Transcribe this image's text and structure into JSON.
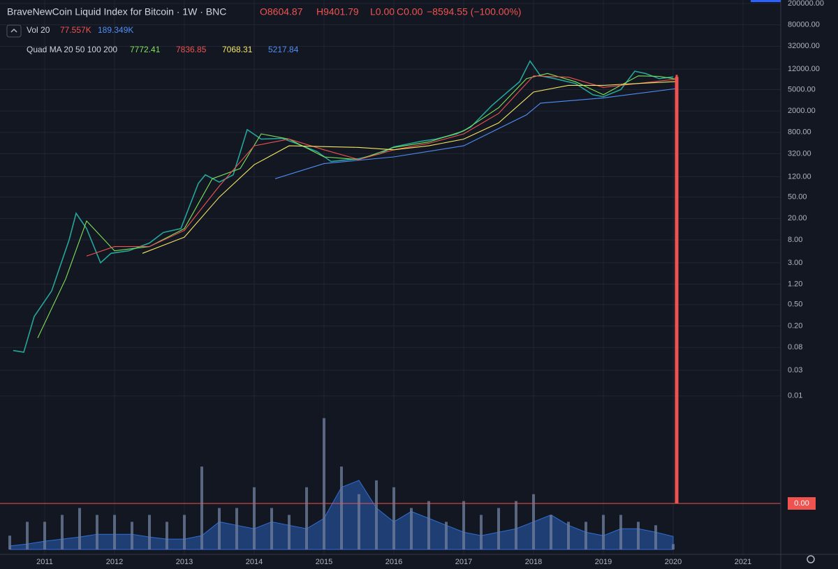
{
  "chart_data": {
    "type": "line",
    "title": "BraveNewCoin Liquid Index for Bitcoin · 1W · BNC",
    "ohlc_labels": [
      "O8604.87",
      "H9401.79",
      "L0.00",
      "C0.00",
      "−8594.55 (−100.00%)"
    ],
    "volume_legend": {
      "name": "Vol 20",
      "value": "77.557K",
      "ma": "189.349K"
    },
    "ma_legend": {
      "name": "Quad MA 20 50 100 200",
      "values": [
        "7772.41",
        "7836.85",
        "7068.31",
        "5217.84"
      ],
      "colors": [
        "#7ee35a",
        "#ef5350",
        "#f5e663",
        "#4f8ff7"
      ]
    },
    "log_scale": true,
    "grid": true,
    "xlim": [
      2010.48,
      2021.54
    ],
    "xticks": [
      2011,
      2012,
      2013,
      2014,
      2015,
      2016,
      2017,
      2018,
      2019,
      2020,
      2021
    ],
    "ylim": [
      0.0001,
      232000
    ],
    "yticks": [
      {
        "value": 200000,
        "label": "200000.00"
      },
      {
        "value": 80000,
        "label": "80000.00"
      },
      {
        "value": 32000,
        "label": "32000.00"
      },
      {
        "value": 12000,
        "label": "12000.00"
      },
      {
        "value": 5000,
        "label": "5000.00"
      },
      {
        "value": 2000,
        "label": "2000.00"
      },
      {
        "value": 800,
        "label": "800.00"
      },
      {
        "value": 320,
        "label": "320.00"
      },
      {
        "value": 120,
        "label": "120.00"
      },
      {
        "value": 50,
        "label": "50.00"
      },
      {
        "value": 20,
        "label": "20.00"
      },
      {
        "value": 8,
        "label": "8.00"
      },
      {
        "value": 3,
        "label": "3.00"
      },
      {
        "value": 1.2,
        "label": "1.20"
      },
      {
        "value": 0.5,
        "label": "0.50"
      },
      {
        "value": 0.2,
        "label": "0.20"
      },
      {
        "value": 0.08,
        "label": "0.08"
      },
      {
        "value": 0.03,
        "label": "0.03"
      },
      {
        "value": 0.01,
        "label": "0.01"
      }
    ],
    "last_price": {
      "value": 0,
      "label": "0.00",
      "color": "#ef5350"
    },
    "last_bar": {
      "x": 2020.05,
      "open": 8604.87,
      "high": 9401.79,
      "low": 0,
      "close": 0,
      "color": "#ef5350"
    },
    "series": [
      {
        "name": "Price",
        "color": "#26a69a",
        "x": [
          2010.55,
          2010.7,
          2010.85,
          2011.1,
          2011.35,
          2011.45,
          2011.6,
          2011.8,
          2011.95,
          2012.2,
          2012.5,
          2012.7,
          2012.95,
          2013.2,
          2013.3,
          2013.5,
          2013.7,
          2013.9,
          2014.1,
          2014.4,
          2014.6,
          2014.9,
          2015.1,
          2015.5,
          2015.8,
          2016.0,
          2016.4,
          2016.6,
          2016.9,
          2017.1,
          2017.4,
          2017.6,
          2017.8,
          2017.95,
          2018.1,
          2018.3,
          2018.6,
          2018.85,
          2019.0,
          2019.25,
          2019.45,
          2019.6,
          2019.8,
          2020.0
        ],
        "values": [
          0.07,
          0.065,
          0.3,
          0.9,
          8,
          25,
          13,
          3,
          4.5,
          5,
          7,
          11,
          13,
          90,
          130,
          95,
          130,
          900,
          600,
          620,
          500,
          350,
          230,
          260,
          320,
          430,
          550,
          600,
          750,
          1000,
          2500,
          4200,
          7000,
          17000,
          9000,
          8000,
          6500,
          4000,
          3700,
          5000,
          11000,
          10000,
          8000,
          8604
        ]
      },
      {
        "name": "MA 20",
        "color": "#7ee35a",
        "x": [
          2010.9,
          2011.3,
          2011.6,
          2012.0,
          2012.5,
          2013.0,
          2013.4,
          2013.8,
          2014.1,
          2014.5,
          2015.0,
          2015.5,
          2016.0,
          2016.5,
          2017.0,
          2017.5,
          2017.9,
          2018.2,
          2018.6,
          2019.0,
          2019.5,
          2019.8,
          2020.05
        ],
        "values": [
          0.12,
          1.5,
          18,
          5,
          6,
          13,
          110,
          170,
          750,
          600,
          280,
          250,
          420,
          530,
          850,
          2300,
          8000,
          10000,
          7000,
          4000,
          9000,
          8800,
          7772
        ]
      },
      {
        "name": "MA 50",
        "color": "#ef5350",
        "x": [
          2011.6,
          2012.0,
          2012.5,
          2013.0,
          2013.5,
          2014.0,
          2014.5,
          2015.0,
          2015.5,
          2016.0,
          2016.5,
          2017.0,
          2017.5,
          2018.0,
          2018.5,
          2019.0,
          2019.5,
          2020.05
        ],
        "values": [
          4,
          6,
          6,
          12,
          80,
          450,
          600,
          380,
          250,
          380,
          500,
          750,
          1800,
          9000,
          8500,
          5500,
          6500,
          7837
        ]
      },
      {
        "name": "MA 100",
        "color": "#f5e663",
        "x": [
          2012.4,
          2013.0,
          2013.5,
          2014.0,
          2014.5,
          2015.5,
          2016.0,
          2016.5,
          2017.0,
          2017.5,
          2018.0,
          2018.5,
          2019.0,
          2019.5,
          2020.05
        ],
        "values": [
          4.5,
          9,
          50,
          200,
          450,
          420,
          380,
          450,
          600,
          1200,
          4500,
          6000,
          6000,
          6500,
          7068
        ]
      },
      {
        "name": "MA 200",
        "color": "#4f8ff7",
        "x": [
          2014.3,
          2015.0,
          2016.0,
          2017.0,
          2017.9,
          2018.1,
          2019.0,
          2020.05
        ],
        "values": [
          110,
          210,
          280,
          450,
          1700,
          2800,
          3500,
          5218
        ]
      }
    ],
    "volume": {
      "color": "#6b7a99",
      "ma_color": "#2f6fd6",
      "vlim": [
        0,
        2300000
      ],
      "x": [
        2010.5,
        2010.75,
        2011.0,
        2011.25,
        2011.5,
        2011.75,
        2012.0,
        2012.25,
        2012.5,
        2012.75,
        2013.0,
        2013.25,
        2013.5,
        2013.75,
        2014.0,
        2014.25,
        2014.5,
        2014.75,
        2015.0,
        2015.25,
        2015.5,
        2015.75,
        2016.0,
        2016.25,
        2016.5,
        2016.75,
        2017.0,
        2017.25,
        2017.5,
        2017.75,
        2018.0,
        2018.25,
        2018.5,
        2018.75,
        2019.0,
        2019.25,
        2019.5,
        2019.75,
        2020.0
      ],
      "values": [
        200000,
        400000,
        400000,
        500000,
        600000,
        500000,
        500000,
        400000,
        500000,
        400000,
        500000,
        1200000,
        600000,
        600000,
        900000,
        600000,
        500000,
        900000,
        1900000,
        1200000,
        800000,
        1000000,
        900000,
        600000,
        700000,
        400000,
        700000,
        500000,
        600000,
        700000,
        800000,
        500000,
        400000,
        400000,
        500000,
        500000,
        400000,
        350000,
        77557
      ],
      "ma": [
        50000,
        80000,
        120000,
        150000,
        180000,
        220000,
        220000,
        220000,
        180000,
        150000,
        150000,
        200000,
        400000,
        350000,
        300000,
        400000,
        350000,
        300000,
        450000,
        900000,
        1000000,
        600000,
        400000,
        550000,
        450000,
        350000,
        250000,
        200000,
        250000,
        300000,
        400000,
        500000,
        350000,
        250000,
        200000,
        300000,
        300000,
        250000,
        189349
      ]
    }
  }
}
